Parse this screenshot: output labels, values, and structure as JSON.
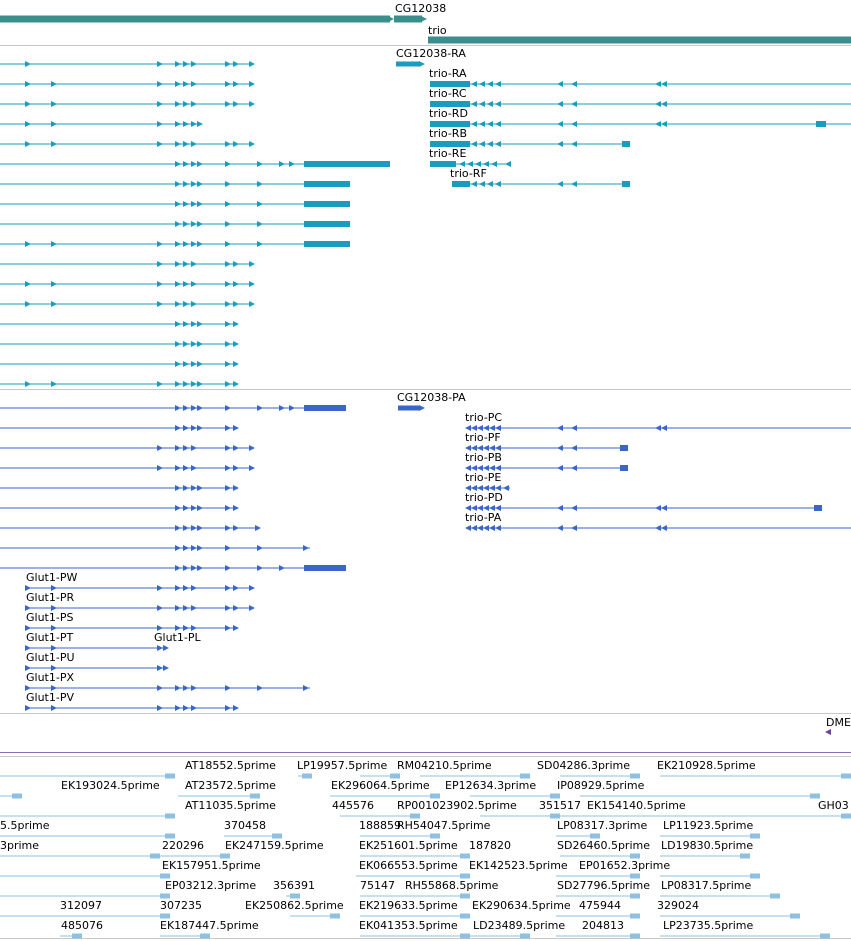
{
  "tracks": {
    "gene_models": {
      "labels": [
        "CG12038",
        "trio"
      ],
      "color": "#3a8f8c"
    },
    "transcripts": {
      "color": "#1a9cbf",
      "labels": [
        "CG12038-RA",
        "trio-RA",
        "trio-RC",
        "trio-RD",
        "trio-RB",
        "trio-RE",
        "trio-RF"
      ]
    },
    "proteins": {
      "color": "#3a66c8",
      "labels": [
        "CG12038-PA",
        "trio-PC",
        "trio-PF",
        "trio-PB",
        "trio-PE",
        "trio-PD",
        "trio-PA",
        "Glut1-PW",
        "Glut1-PR",
        "Glut1-PS",
        "Glut1-PT",
        "Glut1-PL",
        "Glut1-PU",
        "Glut1-PX",
        "Glut1-PV"
      ]
    },
    "dme": {
      "label": "DME",
      "color": "#6b3fa0"
    },
    "ests": {
      "color": "#8fc0e0",
      "labels": [
        "AT18552.5prime",
        "LP19957.5prime",
        "RM04210.5prime",
        "SD04286.3prime",
        "EK210928.5prime",
        "EK193024.5prime",
        "AT23572.5prime",
        "EK296064.5prime",
        "EP12634.3prime",
        "IP08929.5prime",
        "AT11035.5prime",
        "445576",
        "RP001023902.5prime",
        "351517",
        "EK154140.5prime",
        "GH03",
        "5.5prime",
        "370458",
        "188859",
        "RH54047.5prime",
        "LP08317.3prime",
        "LP11923.5prime",
        "3prime",
        "220296",
        "EK247159.5prime",
        "EK251601.5prime",
        "187820",
        "SD26460.5prime",
        "LD19830.5prime",
        "EK157951.5prime",
        "EK066553.5prime",
        "EK142523.5prime",
        "EP01652.3prime",
        "EP03212.3prime",
        "356391",
        "75147",
        "RH55868.5prime",
        "SD27796.5prime",
        "LP08317.5prime",
        "312097",
        "307235",
        "EK250862.5prime",
        "EK219633.5prime",
        "EK290634.5prime",
        "475944",
        "329024",
        "485076",
        "EK187447.5prime",
        "EK041353.5prime",
        "LD23489.5prime",
        "204813",
        "LP23735.5prime"
      ]
    }
  }
}
